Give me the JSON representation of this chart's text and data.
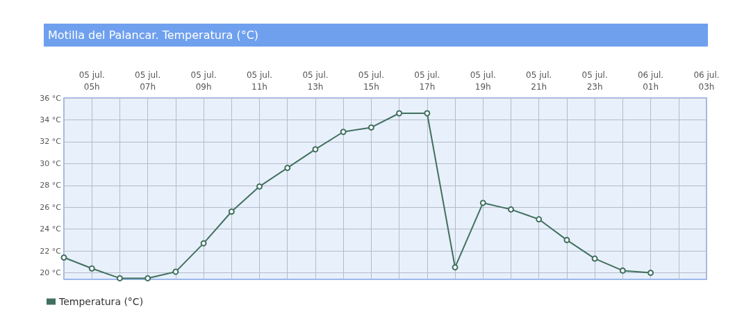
{
  "chart_data": {
    "type": "line",
    "title": "Motilla del Palancar. Temperatura (°C)",
    "categories": [
      null,
      "05 jul.\n05h",
      null,
      "05 jul.\n07h",
      null,
      "05 jul.\n09h",
      null,
      "05 jul.\n11h",
      null,
      "05 jul.\n13h",
      null,
      "05 jul.\n15h",
      null,
      "05 jul.\n17h",
      null,
      "05 jul.\n19h",
      null,
      "05 jul.\n21h",
      null,
      "05 jul.\n23h",
      null,
      "06 jul.\n01h",
      null,
      "06 jul.\n03h"
    ],
    "series": [
      {
        "name": "Temperatura (°C)",
        "color": "#41705f",
        "values": [
          21.4,
          20.4,
          19.5,
          19.5,
          20.1,
          22.7,
          25.6,
          27.9,
          29.6,
          31.3,
          32.9,
          33.3,
          34.6,
          34.6,
          20.5,
          26.4,
          25.8,
          24.9,
          23.0,
          21.3,
          20.2,
          20.0,
          null,
          null
        ]
      }
    ],
    "ylim": [
      19.4,
      36
    ],
    "yticks": [
      {
        "value": 20,
        "label": "20 °C"
      },
      {
        "value": 22,
        "label": "22 °C"
      },
      {
        "value": 24,
        "label": "24 °C"
      },
      {
        "value": 26,
        "label": "26 °C"
      },
      {
        "value": 28,
        "label": "28 °C"
      },
      {
        "value": 30,
        "label": "30 °C"
      },
      {
        "value": 32,
        "label": "32 °C"
      },
      {
        "value": 34,
        "label": "34 °C"
      },
      {
        "value": 36,
        "label": "36 °C"
      }
    ],
    "grid": true,
    "legend": "bottom left",
    "marker": "circle"
  }
}
